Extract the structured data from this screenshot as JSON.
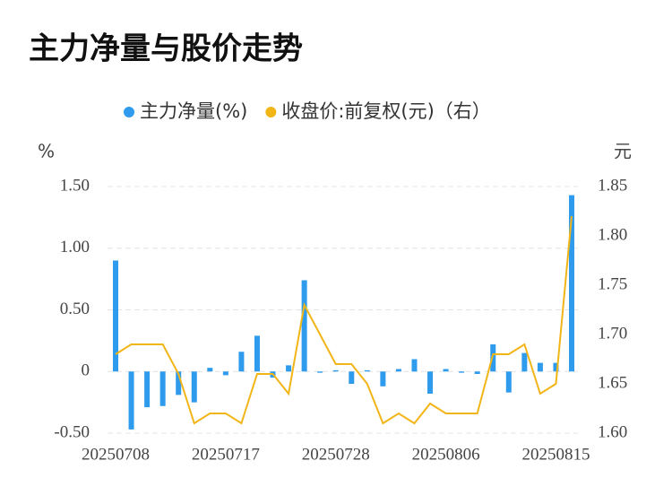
{
  "chart_data": {
    "type": "bar-line",
    "title": "主力净量与股价走势",
    "y_label": "%",
    "y2_label": "元",
    "categories": [
      "20250708",
      null,
      null,
      null,
      null,
      null,
      null,
      "20250717",
      null,
      null,
      null,
      null,
      null,
      null,
      "20250728",
      null,
      null,
      null,
      null,
      null,
      null,
      "20250806",
      null,
      null,
      null,
      null,
      null,
      null,
      "20250815",
      null
    ],
    "series": [
      {
        "name": "主力净量(%)",
        "type": "bar",
        "color": "#2e9bec",
        "values": [
          0.9,
          -0.47,
          -0.29,
          -0.28,
          -0.19,
          -0.25,
          0.03,
          -0.03,
          0.16,
          0.29,
          -0.05,
          0.05,
          0.74,
          -0.01,
          0.01,
          -0.1,
          0.01,
          -0.12,
          0.02,
          0.1,
          -0.18,
          0.02,
          -0.01,
          -0.02,
          0.22,
          -0.17,
          0.15,
          0.07,
          0.07,
          1.43
        ]
      },
      {
        "name": "收盘价:前复权(元)（右）",
        "type": "line",
        "axis": "y2",
        "color": "#f2b517",
        "values": [
          1.68,
          1.69,
          1.69,
          1.69,
          1.66,
          1.61,
          1.62,
          1.62,
          1.61,
          1.66,
          1.66,
          1.64,
          1.73,
          1.7,
          1.67,
          1.67,
          1.65,
          1.61,
          1.62,
          1.61,
          1.63,
          1.62,
          1.62,
          1.62,
          1.68,
          1.68,
          1.69,
          1.64,
          1.65,
          1.82
        ]
      }
    ],
    "ylim": [
      -0.5,
      1.5
    ],
    "yticks": [
      {
        "value": -0.5,
        "label": "-0.50"
      },
      0,
      {
        "value": 0.5,
        "label": "0.50"
      },
      {
        "value": 1,
        "label": "1.00"
      },
      {
        "value": 1.5,
        "label": "1.50"
      }
    ],
    "y2lim": [
      1.6,
      1.85
    ],
    "y2ticks": [
      {
        "value": 1.6,
        "label": "1.60"
      },
      1.65,
      {
        "value": 1.7,
        "label": "1.70"
      },
      1.75,
      {
        "value": 1.8,
        "label": "1.80"
      },
      1.85
    ],
    "grid": true
  }
}
